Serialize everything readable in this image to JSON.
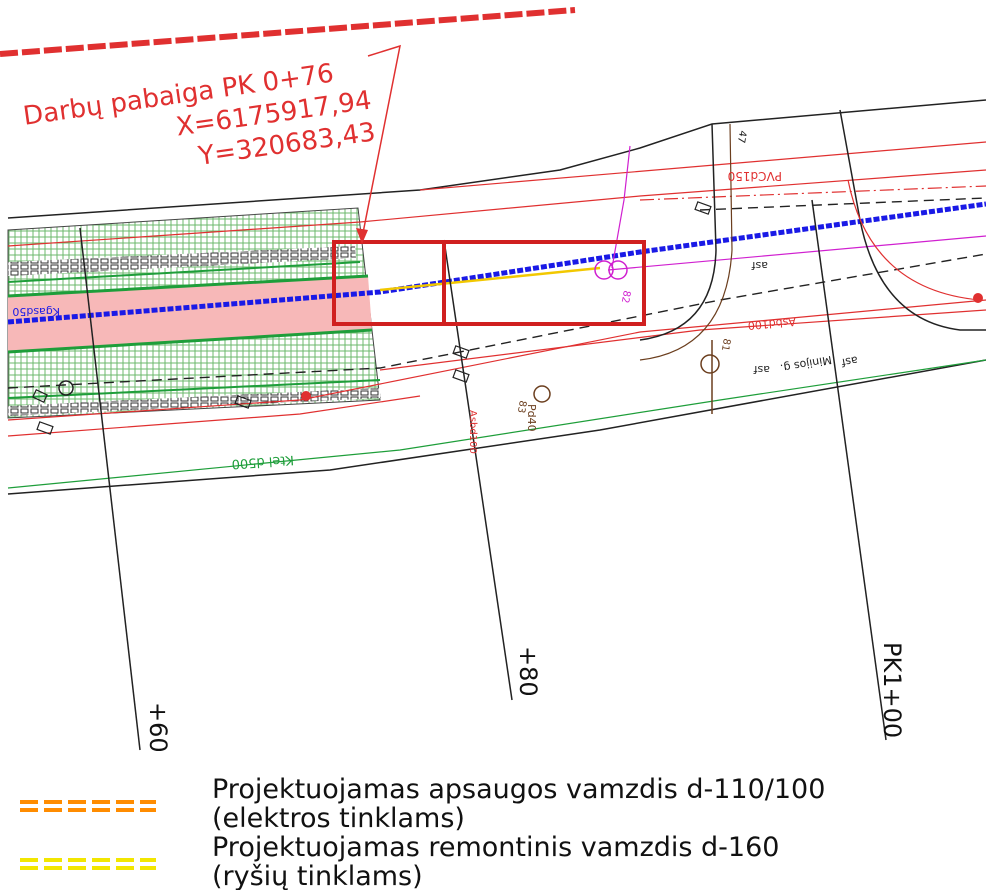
{
  "callout": {
    "line1": "Darbų pabaiga PK 0+76",
    "line2": "X=6175917,94",
    "line3": "Y=320683,43"
  },
  "stations": {
    "s60": "+60",
    "s80": "+80",
    "s100": "PK1+00"
  },
  "labels": {
    "kgas": "Kgasd50",
    "pvc": "PVCd150",
    "asf1": "asf",
    "asf2": "asf",
    "asf3": "asf",
    "minijos": "Minijos g.",
    "ktel": "Ktel d500",
    "asbd100": "Asbd100",
    "asbd100b": "Asbd100",
    "pd": "Pd40",
    "n82": "82",
    "n83": "83",
    "n81": "81",
    "n47": "47"
  },
  "legend": {
    "item1_line1": "Projektuojamas apsaugos vamzdis d-110/100",
    "item1_line2": "(elektros tinklams)",
    "item2_line1": "Projektuojamas remontinis vamzdis d-160",
    "item2_line2": "(ryšių tinklams)"
  },
  "colors": {
    "callout": "#e03030",
    "gas_line": "#1a1ae6",
    "orange_pipe": "#ff8c00",
    "yellow_pipe": "#f2e600",
    "road_fill": "#f7b8b8",
    "green": "#1e9e3a"
  }
}
